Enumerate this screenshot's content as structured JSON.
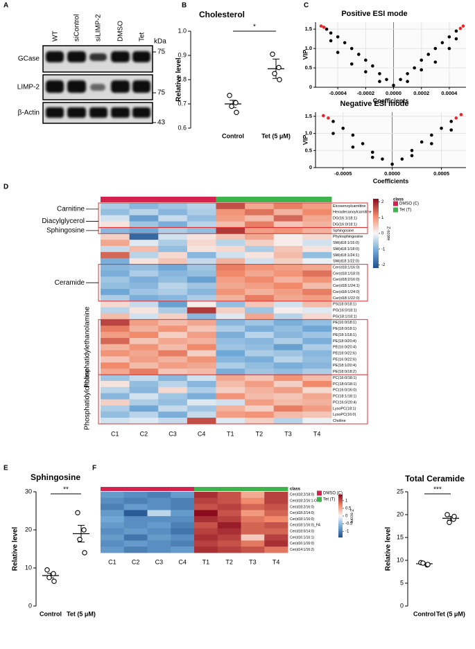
{
  "panel_labels": [
    "A",
    "B",
    "C",
    "D",
    "E",
    "F"
  ],
  "blot": {
    "lanes": [
      "WT",
      "siControl",
      "siLIMP-2",
      "DMSO",
      "Tet"
    ],
    "unit": "kDa",
    "rows": [
      "GCase",
      "LIMP-2",
      "β-Actin"
    ],
    "markers": [
      "75",
      "75",
      "43"
    ]
  },
  "chart_data": [
    {
      "type": "dot",
      "title": "Cholesterol",
      "ylabel": "Relative level",
      "categories": [
        "Control",
        "Tet (5 μM)"
      ],
      "values": [
        [
          0.735,
          0.705,
          0.69,
          0.665
        ],
        [
          0.905,
          0.85,
          0.825,
          0.8
        ]
      ],
      "mean": [
        0.7,
        0.845
      ],
      "sem": [
        0.015,
        0.04
      ],
      "significance": "*",
      "ylim": [
        0.6,
        1.0
      ],
      "yticks": [
        0.6,
        0.7,
        0.8,
        0.9,
        {
          "value": 1,
          "label": "1.0"
        }
      ]
    },
    {
      "type": "scatter",
      "title": "Positive ESI mode",
      "xlabel": "Coefficients",
      "ylabel": "VIP",
      "x": [
        -0.00052,
        -0.0005,
        -0.00048,
        -0.00045,
        -0.0004,
        -0.00035,
        -0.0003,
        -0.00025,
        -0.0002,
        -0.00015,
        -0.0001,
        -5e-05,
        0,
        5e-05,
        0.0001,
        0.00015,
        0.0002,
        0.00025,
        0.0003,
        0.00035,
        0.0004,
        0.00045,
        0.00048,
        0.0005,
        -0.0004,
        -0.0003,
        -0.0002,
        -0.0001,
        0.0001,
        0.0002,
        0.0003,
        0.0004,
        -0.00045,
        0.00045
      ],
      "y": [
        1.58,
        1.55,
        1.5,
        1.4,
        1.3,
        1.15,
        1.0,
        0.85,
        0.7,
        0.55,
        0.35,
        0.2,
        0.05,
        0.2,
        0.35,
        0.5,
        0.7,
        0.85,
        1.0,
        1.15,
        1.3,
        1.45,
        1.52,
        1.58,
        0.9,
        0.6,
        0.4,
        0.15,
        0.15,
        0.45,
        0.65,
        1.0,
        1.2,
        1.25
      ],
      "colors": [
        "#e8262a",
        "#e8262a",
        "#000000",
        "#000000",
        "#000000",
        "#000000",
        "#000000",
        "#000000",
        "#000000",
        "#000000",
        "#000000",
        "#000000",
        "#000000",
        "#000000",
        "#000000",
        "#000000",
        "#000000",
        "#000000",
        "#000000",
        "#000000",
        "#000000",
        "#000000",
        "#e8262a",
        "#e8262a",
        "#000000",
        "#000000",
        "#000000",
        "#000000",
        "#000000",
        "#000000",
        "#000000",
        "#000000",
        "#000000",
        "#000000"
      ],
      "xlim": [
        -0.00056,
        0.00052
      ],
      "ylim": [
        0,
        1.68
      ],
      "xticks": [
        -0.0004,
        -0.0002,
        {
          "value": 0,
          "label": "0.0000"
        },
        0.0002,
        0.0004
      ],
      "yticks": [
        0,
        0.5,
        {
          "value": 1,
          "label": "1.0"
        },
        1.5
      ]
    },
    {
      "type": "scatter",
      "title": "Negative ESI mode",
      "xlabel": "Coefficients",
      "ylabel": "VIP",
      "x": [
        -0.0007,
        -0.00065,
        -0.0006,
        -0.0005,
        -0.0004,
        -0.0003,
        -0.0002,
        -0.0001,
        0,
        0.0001,
        0.0002,
        0.0003,
        0.0004,
        0.0005,
        0.0006,
        0.00065,
        0.0007,
        -0.0006,
        -0.0004,
        -0.0002,
        0.0002,
        0.0004,
        0.0006
      ],
      "y": [
        1.52,
        1.45,
        1.35,
        1.15,
        0.95,
        0.7,
        0.45,
        0.25,
        0.1,
        0.25,
        0.5,
        0.75,
        0.95,
        1.15,
        1.35,
        1.45,
        1.55,
        1.0,
        0.6,
        0.3,
        0.35,
        0.7,
        1.1
      ],
      "colors": [
        "#e8262a",
        "#e8262a",
        "#000000",
        "#000000",
        "#000000",
        "#000000",
        "#000000",
        "#000000",
        "#000000",
        "#000000",
        "#000000",
        "#000000",
        "#000000",
        "#000000",
        "#000000",
        "#e8262a",
        "#e8262a",
        "#000000",
        "#000000",
        "#000000",
        "#000000",
        "#000000",
        "#000000"
      ],
      "xlim": [
        -0.00078,
        0.00075
      ],
      "ylim": [
        0,
        1.62
      ],
      "xticks": [
        -0.0005,
        {
          "value": 0,
          "label": "0.0000"
        },
        0.0005
      ],
      "yticks": [
        0,
        0.5,
        {
          "value": 1,
          "label": "1.0"
        },
        1.5
      ]
    },
    {
      "type": "heatmap",
      "legend_title": "class",
      "colorbar_label": "Z-score",
      "classes": [
        {
          "name": "DMSO (C)",
          "color": "#d6224f"
        },
        {
          "name": "Tet (T)",
          "color": "#3cb44b"
        }
      ],
      "column_colors": [
        "#d6224f",
        "#d6224f",
        "#d6224f",
        "#d6224f",
        "#3cb44b",
        "#3cb44b",
        "#3cb44b",
        "#3cb44b"
      ],
      "columns": [
        "C1",
        "C2",
        "C3",
        "C4",
        "T1",
        "T2",
        "T3",
        "T4"
      ],
      "row_groups": [
        "Carnitine",
        "Diacylglycerol",
        "Sphingosine",
        "Ceramide",
        "Phosphatidylethanolamine",
        "Phosphatidylcholine"
      ],
      "rows": [
        "Eicosenoylcarnitine",
        "Hexadecanoylcarnitine",
        "DG(16:1/18:1)",
        "DG(16:0/18:1)",
        "Sphingosine",
        "Phytosphingosine",
        "SM(d18:1/16:0)",
        "SM(d18:1/18:0)",
        "SM(d18:1/24:1)",
        "SM(d18:1/22:0)",
        "Cer(d18:1/16:0)",
        "Cer(d18:1/18:0)",
        "Cer(d18:2/16:0)",
        "Cer(d18:1/24:1)",
        "Cer(d18:1/24:0)",
        "Cer(d18:1/22:0)",
        "PS(18:0/18:1)",
        "PG(16:0/18:1)",
        "PG(18:1/18:1)",
        "PE(16:0/18:1)",
        "PE(18:0/18:1)",
        "PE(18:1/18:1)",
        "PE(18:0/20:4)",
        "PE(16:0/20:4)",
        "PE(18:0/22:6)",
        "PE(16:0/22:6)",
        "PE(18:1/20:4)",
        "PE(18:0/18:2)",
        "PC(16:0/18:1)",
        "PC(18:0/18:1)",
        "PC(16:0/16:0)",
        "PC(18:1/18:1)",
        "PC(16:0/20:4)",
        "LysoPC(18:1)",
        "LysoPC(16:0)",
        "Choline"
      ],
      "values": [
        [
          -0.6,
          -0.9,
          -0.7,
          -0.5,
          1.6,
          0.8,
          1.2,
          0.9
        ],
        [
          -0.8,
          -0.5,
          -0.9,
          -0.6,
          1.0,
          1.3,
          0.7,
          1.1
        ],
        [
          -0.3,
          -1.2,
          -0.4,
          -0.8,
          0.9,
          0.6,
          1.4,
          0.8
        ],
        [
          0.2,
          -0.7,
          -1.0,
          -0.5,
          0.6,
          1.2,
          0.5,
          0.7
        ],
        [
          -0.9,
          -1.1,
          -0.6,
          -0.8,
          1.8,
          0.9,
          1.0,
          0.7
        ],
        [
          0.4,
          -1.9,
          -0.3,
          0.2,
          0.5,
          0.8,
          0.1,
          0.3
        ],
        [
          0.8,
          -0.2,
          -0.6,
          0.3,
          -0.5,
          0.4,
          0.1,
          -0.3
        ],
        [
          -0.4,
          0.6,
          -0.8,
          0.2,
          0.3,
          -0.6,
          0.5,
          0.2
        ],
        [
          1.4,
          -0.5,
          0.3,
          -0.9,
          -0.3,
          0.2,
          0.6,
          -0.8
        ],
        [
          -1.0,
          0.2,
          0.5,
          -0.4,
          0.7,
          -0.3,
          0.4,
          -0.1
        ],
        [
          -0.9,
          -0.8,
          -1.1,
          -0.7,
          1.2,
          1.0,
          0.9,
          0.8
        ],
        [
          -1.0,
          -0.6,
          -0.9,
          -0.8,
          1.1,
          0.8,
          1.0,
          1.3
        ],
        [
          -0.7,
          -1.0,
          -0.8,
          -1.2,
          0.9,
          1.1,
          0.7,
          1.0
        ],
        [
          -0.8,
          -0.9,
          -0.5,
          -0.7,
          0.8,
          0.9,
          1.1,
          0.6
        ],
        [
          -1.1,
          -0.7,
          -0.6,
          -0.9,
          1.0,
          0.7,
          0.9,
          1.2
        ],
        [
          -0.6,
          -1.0,
          -0.9,
          -0.6,
          0.7,
          1.2,
          0.8,
          0.9
        ],
        [
          0.3,
          -0.4,
          -1.2,
          0.1,
          -0.8,
          0.5,
          -0.3,
          0.6
        ],
        [
          -0.5,
          0.2,
          -0.6,
          1.8,
          0.4,
          -0.7,
          0.1,
          -0.2
        ],
        [
          0.6,
          -0.3,
          0.4,
          -0.9,
          -0.2,
          0.8,
          -0.5,
          0.3
        ],
        [
          1.7,
          0.9,
          0.6,
          0.8,
          -0.9,
          -0.7,
          -1.0,
          -0.8
        ],
        [
          1.2,
          0.7,
          1.0,
          0.5,
          -0.6,
          -1.0,
          -0.8,
          -1.1
        ],
        [
          0.9,
          1.1,
          0.4,
          0.9,
          -1.0,
          -0.5,
          -0.9,
          -0.7
        ],
        [
          1.4,
          0.5,
          0.8,
          0.7,
          -0.8,
          -0.9,
          -0.6,
          -1.0
        ],
        [
          0.7,
          1.0,
          0.6,
          1.1,
          -0.7,
          -0.8,
          -1.2,
          -0.6
        ],
        [
          1.0,
          0.8,
          1.2,
          0.4,
          -1.1,
          -0.6,
          -0.7,
          -0.9
        ],
        [
          0.5,
          0.9,
          0.7,
          1.0,
          -0.9,
          -1.0,
          -0.5,
          -0.8
        ],
        [
          1.1,
          0.6,
          0.9,
          0.8,
          -0.6,
          -0.8,
          -1.0,
          -0.9
        ],
        [
          0.8,
          1.2,
          0.5,
          0.6,
          -1.0,
          -0.7,
          -0.8,
          -0.6
        ],
        [
          -0.7,
          -0.4,
          -0.9,
          -0.3,
          0.8,
          0.5,
          1.0,
          0.6
        ],
        [
          0.2,
          -0.8,
          -0.5,
          -0.9,
          0.6,
          0.9,
          0.4,
          1.1
        ],
        [
          -0.5,
          -0.9,
          0.3,
          -0.6,
          0.4,
          0.7,
          0.9,
          0.3
        ],
        [
          -0.9,
          -0.3,
          -0.7,
          -1.0,
          1.0,
          0.6,
          0.5,
          0.8
        ],
        [
          0.4,
          -0.6,
          -0.8,
          -0.2,
          -0.3,
          0.9,
          0.6,
          0.7
        ],
        [
          -0.6,
          -1.1,
          -0.4,
          -0.7,
          0.7,
          0.4,
          1.2,
          0.9
        ],
        [
          -0.8,
          -0.5,
          -1.0,
          -0.4,
          0.9,
          1.0,
          0.6,
          0.5
        ],
        [
          -0.3,
          -0.2,
          -0.4,
          1.6,
          -0.2,
          0.4,
          -0.5,
          -0.1
        ]
      ],
      "clim": [
        -2.2,
        2.2
      ],
      "colorbar_ticks": [
        2,
        1,
        0,
        -1,
        -2
      ]
    },
    {
      "type": "dot",
      "title": "Sphingosine",
      "ylabel": "Relative level",
      "categories": [
        "Control",
        "Tet (5 μM)"
      ],
      "values": [
        [
          9.5,
          8.5,
          7.5,
          6.5
        ],
        [
          24.5,
          20,
          17.5,
          14
        ]
      ],
      "mean": [
        8.0,
        19.0
      ],
      "sem": [
        0.6,
        2.2
      ],
      "significance": "**",
      "ylim": [
        0,
        30
      ],
      "yticks": [
        0,
        10,
        20,
        30
      ]
    },
    {
      "type": "heatmap",
      "legend_title": "class",
      "colorbar_label": "Z-score",
      "classes": [
        {
          "name": "DMSO (C)",
          "color": "#d6224f"
        },
        {
          "name": "Tet (T)",
          "color": "#3cb44b"
        }
      ],
      "column_colors": [
        "#d6224f",
        "#d6224f",
        "#d6224f",
        "#d6224f",
        "#3cb44b",
        "#3cb44b",
        "#3cb44b",
        "#3cb44b"
      ],
      "columns": [
        "C1",
        "C2",
        "C3",
        "C4",
        "T1",
        "T2",
        "T3",
        "T4"
      ],
      "rows": [
        "Cer(d18:2/18:0)",
        "Cer(d18:2/16:1-OH)",
        "Cer(d18:2/16:0)",
        "Cer(d18:2/14:0)",
        "Cer(d18:1/16:0)",
        "Cer(d18:1/16:0)_FA",
        "Cer(d18:0/14:0)",
        "Cer(d16:1/16:1)",
        "Cer(d16:1/16:0)",
        "Cer(d14:1/16:2)"
      ],
      "values": [
        [
          -0.8,
          -0.9,
          -1.0,
          -0.8,
          1.2,
          1.0,
          0.5,
          1.1
        ],
        [
          -0.9,
          -1.0,
          -0.9,
          -1.0,
          1.1,
          1.0,
          0.7,
          1.1
        ],
        [
          -1.0,
          -0.8,
          -0.9,
          -1.0,
          1.0,
          1.1,
          0.9,
          1.0
        ],
        [
          -0.8,
          -1.3,
          -0.3,
          -0.8,
          1.4,
          1.0,
          0.6,
          0.9
        ],
        [
          -0.7,
          -0.9,
          -0.9,
          -0.9,
          1.2,
          1.1,
          0.8,
          0.7
        ],
        [
          -0.8,
          -0.9,
          -0.8,
          -1.0,
          1.0,
          1.3,
          0.9,
          1.0
        ],
        [
          -0.9,
          -0.8,
          -0.9,
          -1.1,
          1.1,
          1.2,
          0.9,
          0.9
        ],
        [
          -0.8,
          -1.1,
          -0.8,
          -0.9,
          1.2,
          1.1,
          0.3,
          1.1
        ],
        [
          -0.9,
          -0.8,
          -0.9,
          -1.0,
          1.1,
          1.0,
          0.8,
          1.2
        ],
        [
          -0.8,
          -1.0,
          -0.9,
          -0.8,
          1.2,
          1.1,
          1.0,
          0.8
        ]
      ],
      "clim": [
        -1.4,
        1.4
      ],
      "colorbar_ticks": [
        1,
        0.5,
        0,
        -0.5,
        -1
      ]
    },
    {
      "type": "dot",
      "title": "Total Ceramide",
      "ylabel": "Relative level",
      "categories": [
        "Control",
        "Tet (5 μM)"
      ],
      "values": [
        [
          9.5,
          9.0,
          9.4,
          9.1
        ],
        [
          20.0,
          19.0,
          18.3,
          19.6
        ]
      ],
      "mean": [
        9.25,
        19.2
      ],
      "sem": [
        0.15,
        0.4
      ],
      "significance": "***",
      "ylim": [
        0,
        25
      ],
      "yticks": [
        0,
        5,
        10,
        15,
        20,
        25
      ]
    }
  ]
}
